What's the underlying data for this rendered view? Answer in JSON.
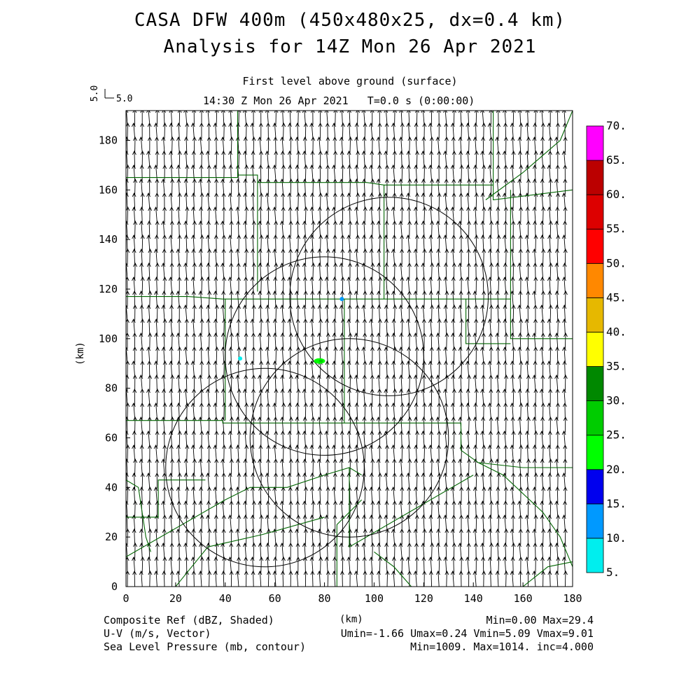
{
  "titles": {
    "line1": "CASA DFW 400m (450x480x25, dx=0.4 km)",
    "line2": "Analysis for 14Z Mon 26 Apr 2021",
    "level": "First level above ground (surface)",
    "time": "14:30 Z Mon 26 Apr 2021   T=0.0 s (0:00:00)"
  },
  "reference_vector": {
    "label_vertical": "5.0",
    "label_horizontal": "5.0"
  },
  "footer": {
    "left": [
      "Composite Ref (dBZ, Shaded)",
      "U-V (m/s, Vector)",
      "Sea Level Pressure (mb, contour)"
    ],
    "right": [
      "Min=0.00 Max=29.4",
      "Umin=-1.66 Umax=0.24 Vmin=5.09 Vmax=9.01",
      "Min=1009. Max=1014. inc=4.000"
    ]
  },
  "chart_data": {
    "type": "heatmap",
    "xlabel": "(km)",
    "ylabel": "(km)",
    "xlim": [
      0,
      180
    ],
    "ylim": [
      0,
      192
    ],
    "xticks": [
      0,
      20,
      40,
      60,
      80,
      100,
      120,
      140,
      160,
      180
    ],
    "yticks": [
      0,
      20,
      40,
      60,
      80,
      100,
      120,
      140,
      160,
      180
    ],
    "colorbar": {
      "levels": [
        "5.",
        "10.",
        "15.",
        "20.",
        "25.",
        "30.",
        "35.",
        "40.",
        "45.",
        "50.",
        "55.",
        "60.",
        "65.",
        "70."
      ],
      "colors": [
        "#00eeee",
        "#0099ff",
        "#0000ee",
        "#00ff00",
        "#00cc00",
        "#008800",
        "#ffff00",
        "#e6b800",
        "#ff8800",
        "#ff0000",
        "#dd0000",
        "#bb0000",
        "#ff00ff"
      ]
    },
    "vector_field": {
      "u_range": [
        -1.66,
        0.24
      ],
      "v_range": [
        5.09,
        9.01
      ],
      "direction": "from south (northward)"
    },
    "radar_range_rings": [
      {
        "center_km": [
          106,
          117
        ],
        "radius_km": 40
      },
      {
        "center_km": [
          80,
          93
        ],
        "radius_km": 40
      },
      {
        "center_km": [
          90,
          60
        ],
        "radius_km": 40
      },
      {
        "center_km": [
          56,
          48
        ],
        "radius_km": 40
      }
    ],
    "echoes": [
      {
        "x_km": 78,
        "y_km": 91,
        "dbz": 20
      },
      {
        "x_km": 87,
        "y_km": 116,
        "dbz": 10
      },
      {
        "x_km": 46,
        "y_km": 92,
        "dbz": 5
      }
    ],
    "colors": {
      "vectors": "#000000",
      "boundaries": "#006400",
      "contours": "#000000"
    }
  }
}
